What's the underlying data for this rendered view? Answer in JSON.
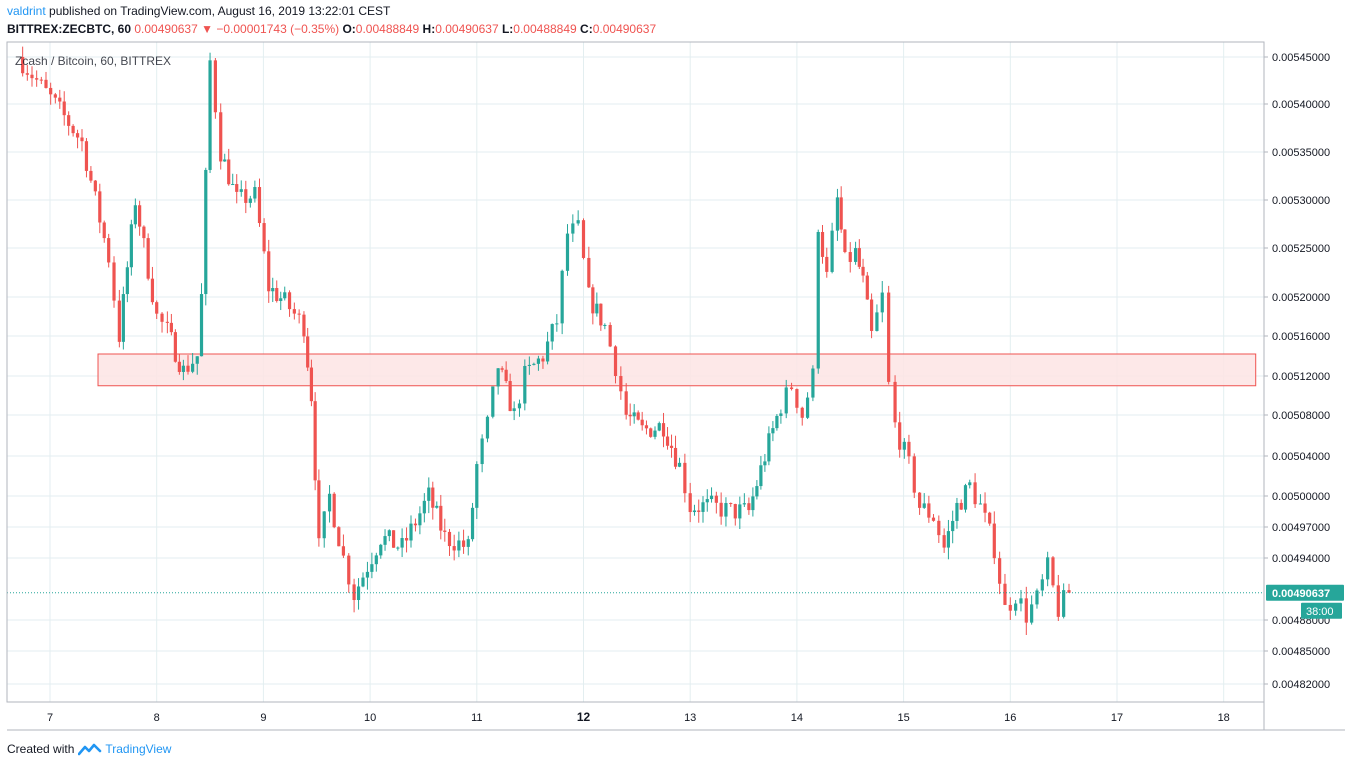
{
  "header": {
    "author": "valdrint",
    "published": "published on TradingView.com, August 16, 2019 13:22:01 CEST",
    "symbol": "BITTREX:ZECBTC, 60",
    "last": "0.00490637",
    "change_arrow": "▼",
    "change": "−0.00001743 (−0.35%)",
    "o_label": "O:",
    "o_value": "0.00488849",
    "h_label": "H:",
    "h_value": "0.00490637",
    "l_label": "L:",
    "l_value": "0.00488849",
    "c_label": "C:",
    "c_value": "0.00490637"
  },
  "footer": {
    "created_with": "Created with",
    "brand": "TradingView",
    "logo_icon": "tradingview-logo-icon"
  },
  "colors": {
    "up": "#26a69a",
    "down": "#ef5350",
    "zone_fill": "#fde4e4",
    "zone_stroke": "#ef5350",
    "grid": "#e3eef0",
    "price_line": "#26a69a"
  },
  "chart_data": {
    "type": "candlestick",
    "watermark": "Zcash / Bitcoin, 60, BITTREX",
    "y_tick_labels": [
      "0.00545000",
      "0.00540000",
      "0.00535000",
      "0.00530000",
      "0.00525000",
      "0.00520000",
      "0.00516000",
      "0.00512000",
      "0.00508000",
      "0.00504000",
      "0.00500000",
      "0.00497000",
      "0.00494000",
      "0.00488000",
      "0.00485000",
      "0.00482000"
    ],
    "x_tick_labels": [
      "7",
      "8",
      "9",
      "10",
      "11",
      "12",
      "13",
      "14",
      "15",
      "16",
      "17",
      "18"
    ],
    "bold_x_tick": "12",
    "current_price_label": "0.00490637",
    "countdown_label": "38:00",
    "current_price": 0.00490637,
    "resistance_zone": {
      "low": 0.00511,
      "high": 0.005142,
      "from_day": 7.45,
      "to_day": 18.3
    },
    "pivots": [
      {
        "t": 6.7,
        "p": 0.00545
      },
      {
        "t": 7.05,
        "p": 0.0054
      },
      {
        "t": 7.3,
        "p": 0.00536
      },
      {
        "t": 7.55,
        "p": 0.00524
      },
      {
        "t": 7.65,
        "p": 0.00516
      },
      {
        "t": 7.8,
        "p": 0.0053
      },
      {
        "t": 8.0,
        "p": 0.00518
      },
      {
        "t": 8.1,
        "p": 0.005165
      },
      {
        "t": 8.25,
        "p": 0.005125
      },
      {
        "t": 8.38,
        "p": 0.00514
      },
      {
        "t": 8.42,
        "p": 0.0052
      },
      {
        "t": 8.5,
        "p": 0.005445
      },
      {
        "t": 8.6,
        "p": 0.00535
      },
      {
        "t": 8.75,
        "p": 0.0053
      },
      {
        "t": 8.92,
        "p": 0.005305
      },
      {
        "t": 9.05,
        "p": 0.00521
      },
      {
        "t": 9.2,
        "p": 0.005195
      },
      {
        "t": 9.38,
        "p": 0.00517
      },
      {
        "t": 9.45,
        "p": 0.0051
      },
      {
        "t": 9.52,
        "p": 0.00495
      },
      {
        "t": 9.62,
        "p": 0.005
      },
      {
        "t": 9.75,
        "p": 0.00494
      },
      {
        "t": 9.85,
        "p": 0.004905
      },
      {
        "t": 10.1,
        "p": 0.00496
      },
      {
        "t": 10.3,
        "p": 0.00495
      },
      {
        "t": 10.55,
        "p": 0.005
      },
      {
        "t": 10.7,
        "p": 0.00496
      },
      {
        "t": 10.92,
        "p": 0.00495
      },
      {
        "t": 11.0,
        "p": 0.00503
      },
      {
        "t": 11.1,
        "p": 0.00507
      },
      {
        "t": 11.2,
        "p": 0.00513
      },
      {
        "t": 11.35,
        "p": 0.00508
      },
      {
        "t": 11.45,
        "p": 0.00512
      },
      {
        "t": 11.62,
        "p": 0.00514
      },
      {
        "t": 11.75,
        "p": 0.005175
      },
      {
        "t": 11.85,
        "p": 0.005265
      },
      {
        "t": 11.95,
        "p": 0.00527
      },
      {
        "t": 12.05,
        "p": 0.0052
      },
      {
        "t": 12.2,
        "p": 0.00517
      },
      {
        "t": 12.3,
        "p": 0.00513
      },
      {
        "t": 12.4,
        "p": 0.00508
      },
      {
        "t": 12.55,
        "p": 0.005065
      },
      {
        "t": 12.75,
        "p": 0.00507
      },
      {
        "t": 12.9,
        "p": 0.00503
      },
      {
        "t": 13.0,
        "p": 0.00499
      },
      {
        "t": 13.2,
        "p": 0.00499
      },
      {
        "t": 13.38,
        "p": 0.004985
      },
      {
        "t": 13.55,
        "p": 0.004985
      },
      {
        "t": 13.7,
        "p": 0.00504
      },
      {
        "t": 13.85,
        "p": 0.00509
      },
      {
        "t": 13.95,
        "p": 0.00511
      },
      {
        "t": 14.05,
        "p": 0.00508
      },
      {
        "t": 14.15,
        "p": 0.00512
      },
      {
        "t": 14.2,
        "p": 0.005275
      },
      {
        "t": 14.28,
        "p": 0.00522
      },
      {
        "t": 14.38,
        "p": 0.0053
      },
      {
        "t": 14.45,
        "p": 0.005235
      },
      {
        "t": 14.55,
        "p": 0.005245
      },
      {
        "t": 14.62,
        "p": 0.005215
      },
      {
        "t": 14.7,
        "p": 0.00516
      },
      {
        "t": 14.8,
        "p": 0.0052
      },
      {
        "t": 14.86,
        "p": 0.00511
      },
      {
        "t": 14.92,
        "p": 0.00507
      },
      {
        "t": 15.05,
        "p": 0.00503
      },
      {
        "t": 15.15,
        "p": 0.00499
      },
      {
        "t": 15.28,
        "p": 0.00498
      },
      {
        "t": 15.38,
        "p": 0.00495
      },
      {
        "t": 15.5,
        "p": 0.00499
      },
      {
        "t": 15.62,
        "p": 0.00501
      },
      {
        "t": 15.72,
        "p": 0.00499
      },
      {
        "t": 15.85,
        "p": 0.00495
      },
      {
        "t": 15.95,
        "p": 0.00489
      },
      {
        "t": 16.05,
        "p": 0.004905
      },
      {
        "t": 16.15,
        "p": 0.004885
      },
      {
        "t": 16.25,
        "p": 0.0049
      },
      {
        "t": 16.35,
        "p": 0.00493
      },
      {
        "t": 16.45,
        "p": 0.00489
      },
      {
        "t": 16.55,
        "p": 0.004906
      }
    ]
  }
}
